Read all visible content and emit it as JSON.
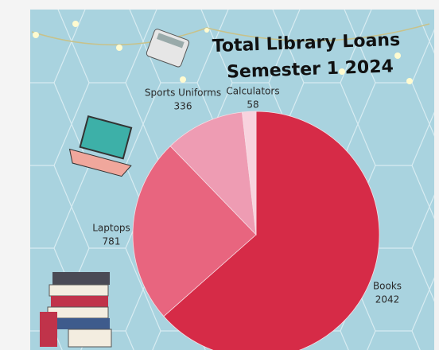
{
  "chart_data": {
    "type": "pie",
    "title": "Total Library Loans",
    "subtitle": "Semester 1 2024",
    "categories": [
      "Books",
      "Laptops",
      "Sports Uniforms",
      "Calculators"
    ],
    "values": [
      2042,
      781,
      336,
      58
    ],
    "colors": [
      "#d62b47",
      "#e8657f",
      "#ee9cb3",
      "#f8d3de"
    ]
  }
}
